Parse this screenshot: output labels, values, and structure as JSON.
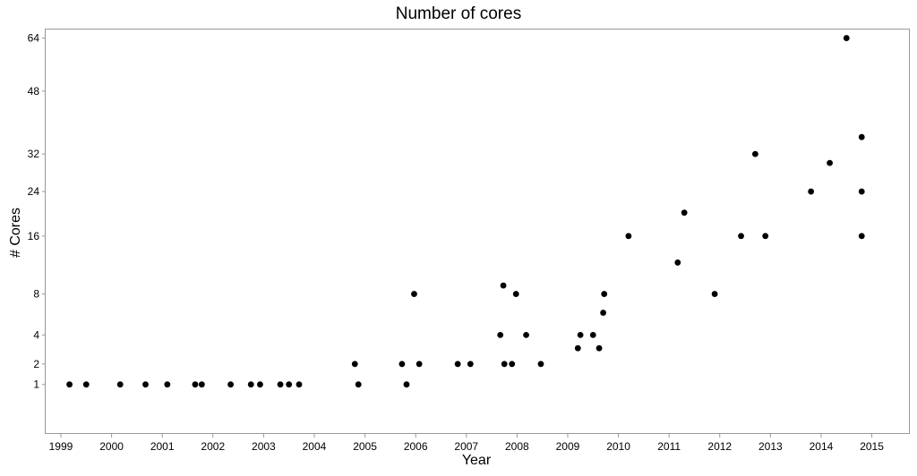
{
  "chart_data": {
    "type": "scatter",
    "title": "Number of cores",
    "xlabel": "Year",
    "ylabel": "# Cores",
    "y_scale": "sqrt",
    "xlim": [
      1998.7,
      2015.75
    ],
    "ylim": [
      0,
      66.8
    ],
    "x_ticks": [
      1999,
      2000,
      2001,
      2002,
      2003,
      2004,
      2005,
      2006,
      2007,
      2008,
      2009,
      2010,
      2011,
      2012,
      2013,
      2014,
      2015
    ],
    "y_ticks": [
      1,
      2,
      4,
      8,
      16,
      24,
      32,
      48,
      64
    ],
    "grid": false,
    "point_color": "#000000",
    "points": [
      {
        "x": 1999.17,
        "y": 1
      },
      {
        "x": 1999.5,
        "y": 1
      },
      {
        "x": 2000.17,
        "y": 1
      },
      {
        "x": 2000.67,
        "y": 1
      },
      {
        "x": 2001.1,
        "y": 1
      },
      {
        "x": 2001.65,
        "y": 1
      },
      {
        "x": 2001.78,
        "y": 1
      },
      {
        "x": 2002.35,
        "y": 1
      },
      {
        "x": 2002.75,
        "y": 1
      },
      {
        "x": 2002.93,
        "y": 1
      },
      {
        "x": 2003.33,
        "y": 1
      },
      {
        "x": 2003.5,
        "y": 1
      },
      {
        "x": 2003.7,
        "y": 1
      },
      {
        "x": 2004.8,
        "y": 2
      },
      {
        "x": 2004.87,
        "y": 1
      },
      {
        "x": 2005.73,
        "y": 2
      },
      {
        "x": 2005.82,
        "y": 1
      },
      {
        "x": 2005.97,
        "y": 8
      },
      {
        "x": 2006.07,
        "y": 2
      },
      {
        "x": 2006.83,
        "y": 2
      },
      {
        "x": 2007.08,
        "y": 2
      },
      {
        "x": 2007.67,
        "y": 4
      },
      {
        "x": 2007.73,
        "y": 9
      },
      {
        "x": 2007.75,
        "y": 2
      },
      {
        "x": 2007.9,
        "y": 2
      },
      {
        "x": 2007.98,
        "y": 8
      },
      {
        "x": 2008.18,
        "y": 4
      },
      {
        "x": 2008.47,
        "y": 2
      },
      {
        "x": 2009.2,
        "y": 3
      },
      {
        "x": 2009.25,
        "y": 4
      },
      {
        "x": 2009.5,
        "y": 4
      },
      {
        "x": 2009.62,
        "y": 3
      },
      {
        "x": 2009.7,
        "y": 6
      },
      {
        "x": 2009.72,
        "y": 8
      },
      {
        "x": 2010.2,
        "y": 16
      },
      {
        "x": 2011.17,
        "y": 12
      },
      {
        "x": 2011.3,
        "y": 20
      },
      {
        "x": 2011.9,
        "y": 8
      },
      {
        "x": 2012.42,
        "y": 16
      },
      {
        "x": 2012.7,
        "y": 32
      },
      {
        "x": 2012.9,
        "y": 16
      },
      {
        "x": 2013.8,
        "y": 24
      },
      {
        "x": 2014.17,
        "y": 30
      },
      {
        "x": 2014.5,
        "y": 64
      },
      {
        "x": 2014.8,
        "y": 36
      },
      {
        "x": 2014.8,
        "y": 24
      },
      {
        "x": 2014.8,
        "y": 16
      }
    ]
  }
}
